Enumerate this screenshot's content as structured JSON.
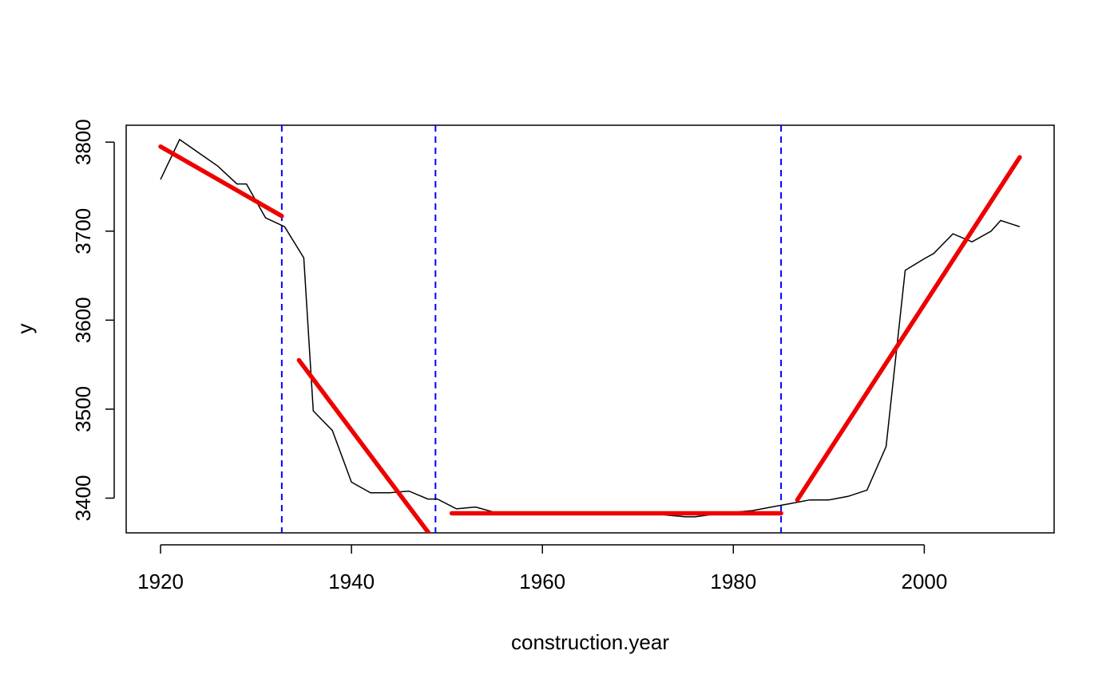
{
  "chart_data": {
    "type": "line",
    "title": "",
    "xlabel": "construction.year",
    "ylabel": "y",
    "xlim": [
      1916.4,
      2013.6
    ],
    "ylim": [
      3361,
      3819
    ],
    "x_ticks": [
      1920,
      1940,
      1960,
      1980,
      2000
    ],
    "y_ticks": [
      3400,
      3500,
      3600,
      3700,
      3800
    ],
    "grid": false,
    "legend": "none",
    "colors": {
      "data": "#000000",
      "fit": "#ee0000",
      "breaks": "#0000ff"
    },
    "series": [
      {
        "x": [
          1920,
          1922,
          1924,
          1926,
          1928,
          1929,
          1931,
          1933,
          1935,
          1936,
          1938,
          1940,
          1942,
          1944,
          1946,
          1948,
          1949,
          1951,
          1953,
          1955,
          1957,
          1959,
          1961,
          1963,
          1965,
          1967,
          1969,
          1971,
          1973,
          1975,
          1976,
          1978,
          1980,
          1982,
          1984,
          1986,
          1988,
          1990,
          1992,
          1994,
          1996,
          1998,
          2000,
          2001,
          2003,
          2005,
          2007,
          2008,
          2010
        ],
        "y": [
          3758,
          3803,
          3788,
          3773,
          3753,
          3753,
          3715,
          3705,
          3670,
          3498,
          3476,
          3418,
          3406,
          3406,
          3408,
          3399,
          3399,
          3388,
          3390,
          3384,
          3382,
          3383,
          3384,
          3384,
          3384,
          3382,
          3384,
          3384,
          3381,
          3379,
          3379,
          3382,
          3384,
          3386,
          3390,
          3394,
          3398,
          3398,
          3402,
          3409,
          3458,
          3656,
          3669,
          3675,
          3697,
          3688,
          3700,
          3712,
          3705
        ]
      },
      {
        "segments": [
          {
            "x": [
              1920,
              1932.7
            ],
            "y": [
              3795,
              3717
            ]
          },
          {
            "x": [
              1934.5,
              1948.5
            ],
            "y": [
              3555,
              3355
            ]
          },
          {
            "x": [
              1950.5,
              1985
            ],
            "y": [
              3383,
              3383
            ]
          },
          {
            "x": [
              1986.7,
              2010
            ],
            "y": [
              3398,
              3783
            ]
          }
        ]
      },
      {
        "breakpoints": [
          1932.7,
          1948.8,
          1985
        ]
      }
    ]
  }
}
